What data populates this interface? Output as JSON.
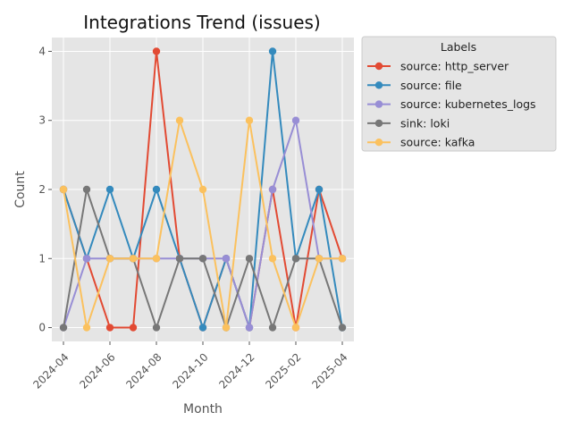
{
  "chart_data": {
    "type": "line",
    "title": "Integrations Trend (issues)",
    "xlabel": "Month",
    "ylabel": "Count",
    "x": [
      "2024-04",
      "2024-05",
      "2024-06",
      "2024-07",
      "2024-08",
      "2024-09",
      "2024-10",
      "2024-11",
      "2024-12",
      "2025-01",
      "2025-02",
      "2025-03",
      "2025-04"
    ],
    "x_tick_labels": [
      "2024-04",
      "2024-06",
      "2024-08",
      "2024-10",
      "2024-12",
      "2025-02",
      "2025-04"
    ],
    "y_ticks": [
      0,
      1,
      2,
      3,
      4
    ],
    "ylim": [
      -0.2,
      4.2
    ],
    "grid": true,
    "legend": {
      "title": "Labels",
      "placement": "outside-top-right"
    },
    "series": [
      {
        "name": "source: http_server",
        "color": "#E24A33",
        "values": [
          2,
          1,
          0,
          0,
          4,
          1,
          0,
          1,
          0,
          2,
          0,
          2,
          1
        ]
      },
      {
        "name": "source: file",
        "color": "#348ABD",
        "values": [
          2,
          1,
          2,
          1,
          2,
          1,
          0,
          1,
          0,
          4,
          1,
          2,
          0
        ]
      },
      {
        "name": "source: kubernetes_logs",
        "color": "#988ED5",
        "values": [
          0,
          1,
          1,
          1,
          1,
          1,
          1,
          1,
          0,
          2,
          3,
          1,
          1
        ]
      },
      {
        "name": "sink: loki",
        "color": "#777777",
        "values": [
          0,
          2,
          1,
          1,
          0,
          1,
          1,
          0,
          1,
          0,
          1,
          1,
          0
        ]
      },
      {
        "name": "source: kafka",
        "color": "#FBC15E",
        "values": [
          2,
          0,
          1,
          1,
          1,
          3,
          2,
          0,
          3,
          1,
          0,
          1,
          1
        ]
      }
    ]
  }
}
